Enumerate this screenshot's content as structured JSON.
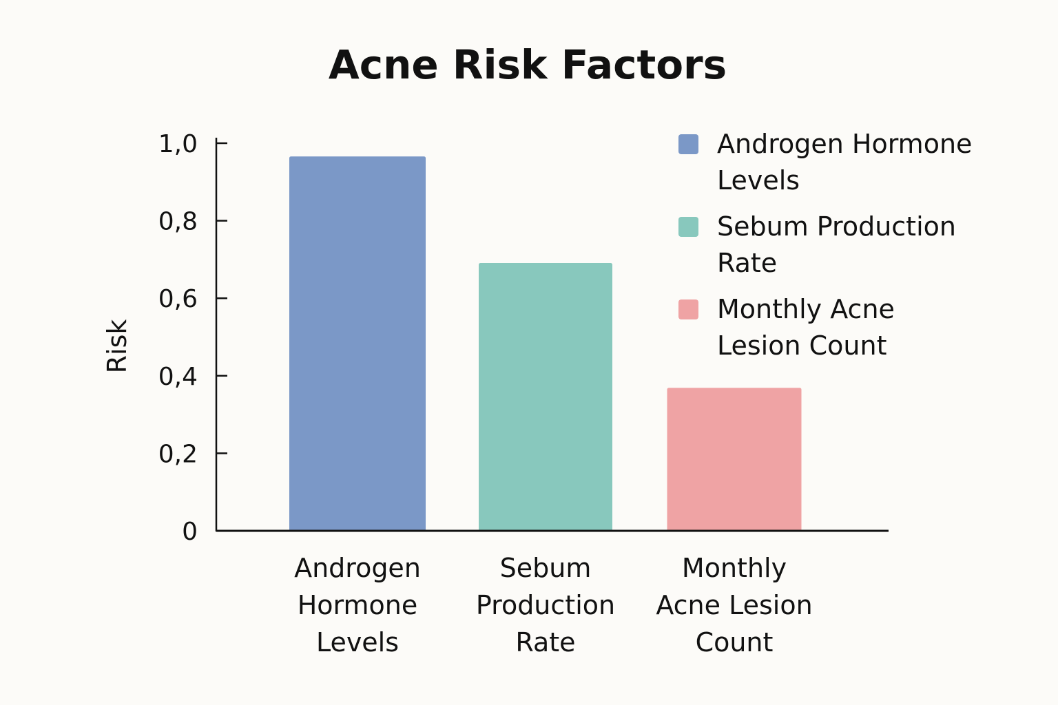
{
  "chart_data": {
    "type": "bar",
    "title": "Acne Risk Factors",
    "xlabel": "",
    "ylabel": "Risk",
    "ylim": [
      0,
      1.0
    ],
    "yticks": [
      {
        "value": 0,
        "label": "0"
      },
      {
        "value": 0.2,
        "label": "0,2"
      },
      {
        "value": 0.4,
        "label": "0,4"
      },
      {
        "value": 0.6,
        "label": "0,6"
      },
      {
        "value": 0.8,
        "label": "0,8"
      },
      {
        "value": 1.0,
        "label": "1,0"
      }
    ],
    "categories": [
      "Androgen Hormone Levels",
      "Sebum Production Rate",
      "Monthly Acne Lesion Count"
    ],
    "category_label_lines": [
      [
        "Androgen",
        "Hormone",
        "Levels"
      ],
      [
        "Sebum",
        "Production",
        "Rate"
      ],
      [
        "Monthly",
        "Acne Lesion",
        "Count"
      ]
    ],
    "values": [
      0.965,
      0.69,
      0.368
    ],
    "colors": [
      "#7b98c7",
      "#88c8bd",
      "#efa3a4"
    ],
    "legend": {
      "placement": "top-right",
      "entries": [
        {
          "lines": [
            "Androgen Hormone",
            "Levels"
          ],
          "color": "#7b98c7"
        },
        {
          "lines": [
            "Sebum Production",
            "Rate"
          ],
          "color": "#88c8bd"
        },
        {
          "lines": [
            "Monthly Acne",
            "Lesion Count"
          ],
          "color": "#efa3a4"
        }
      ]
    },
    "grid": false
  }
}
